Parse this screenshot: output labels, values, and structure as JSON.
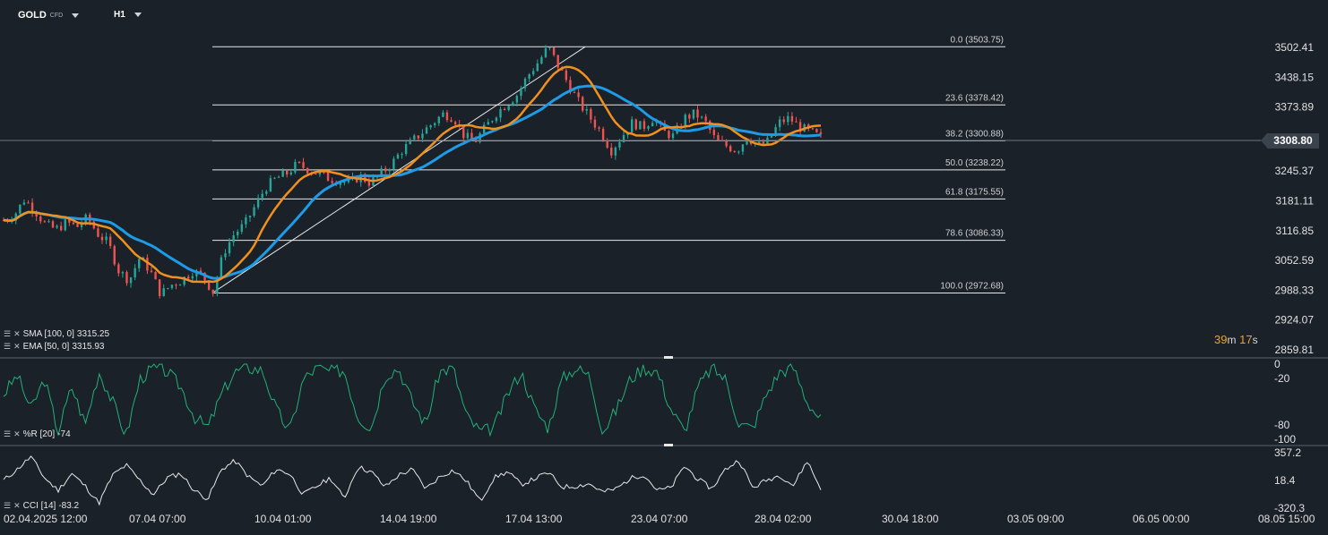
{
  "header": {
    "symbol": "GOLD",
    "symbol_sub": "CFD",
    "timeframe": "H1"
  },
  "chart_data": {
    "type": "candlestick",
    "price_axis_ticks": [
      "3502.41",
      "3438.15",
      "3373.89",
      "3308.80",
      "3245.37",
      "3181.11",
      "3116.85",
      "3052.59",
      "2988.33",
      "2924.07",
      "2859.81"
    ],
    "current_price": "3308.80",
    "time_axis_ticks": [
      "02.04.2025  12:00",
      "07.04  07:00",
      "10.04  01:00",
      "14.04  19:00",
      "17.04  13:00",
      "23.04  07:00",
      "28.04  02:00",
      "30.04  18:00",
      "03.05  09:00",
      "06.05  00:00",
      "08.05  15:00"
    ],
    "fibonacci": [
      {
        "label": "0.0 (3503.75)",
        "price": 3503.75
      },
      {
        "label": "23.6 (3378.42)",
        "price": 3378.42
      },
      {
        "label": "38.2 (3300.88)",
        "price": 3300.88
      },
      {
        "label": "50.0 (3238.22)",
        "price": 3238.22
      },
      {
        "label": "61.8 (3175.55)",
        "price": 3175.55
      },
      {
        "label": "78.6 (3086.33)",
        "price": 3086.33
      },
      {
        "label": "100.0 (2972.68)",
        "price": 2972.68
      }
    ],
    "ylim": [
      2859.81,
      3502.41
    ],
    "price_path": [
      3130,
      3140,
      3175,
      3150,
      3120,
      3110,
      3125,
      3115,
      3135,
      3100,
      3080,
      3020,
      3000,
      3050,
      3020,
      2970,
      2990,
      3000,
      3020,
      3010,
      2975,
      3060,
      3100,
      3120,
      3160,
      3200,
      3220,
      3230,
      3250,
      3240,
      3230,
      3220,
      3215,
      3210,
      3225,
      3210,
      3230,
      3250,
      3280,
      3300,
      3320,
      3340,
      3360,
      3350,
      3310,
      3300,
      3330,
      3360,
      3380,
      3400,
      3440,
      3470,
      3503,
      3460,
      3420,
      3380,
      3350,
      3320,
      3280,
      3310,
      3340,
      3330,
      3350,
      3320,
      3310,
      3350,
      3360,
      3340,
      3300,
      3290,
      3280,
      3310,
      3290,
      3300,
      3340,
      3350,
      3330,
      3320,
      3308
    ],
    "indicators": {
      "sma": {
        "label": "SMA [100,  0]",
        "value": "3315.25",
        "color": "#1e9be6"
      },
      "ema": {
        "label": "EMA [50,  0]",
        "value": "3315.93",
        "color": "#f0901e"
      },
      "wr": {
        "label": "%R [20]",
        "value": "-74",
        "ticks": [
          "0",
          "-20",
          "-80",
          "-100"
        ],
        "values": [
          -40,
          -15,
          -60,
          -20,
          -90,
          -30,
          -80,
          -10,
          -50,
          -95,
          -20,
          -5,
          -10,
          -30,
          -70,
          -85,
          -40,
          -10,
          -5,
          -8,
          -60,
          -90,
          -20,
          -5,
          -10,
          -8,
          -70,
          -85,
          -15,
          -5,
          -50,
          -80,
          -10,
          -5,
          -70,
          -90,
          -85,
          -40,
          -10,
          -60,
          -85,
          -20,
          -5,
          -15,
          -90,
          -60,
          -20,
          -5,
          -10,
          -60,
          -90,
          -30,
          -5,
          -20,
          -80,
          -85,
          -40,
          -10,
          -5,
          -50,
          -74
        ]
      },
      "cci": {
        "label": "CCI [14]",
        "value": "-83.2",
        "ticks": [
          "357.2",
          "18.4",
          "-320.3"
        ],
        "values": [
          20,
          150,
          300,
          50,
          -100,
          100,
          -50,
          -250,
          80,
          200,
          20,
          -150,
          50,
          100,
          -100,
          -200,
          150,
          250,
          60,
          -50,
          150,
          100,
          -150,
          -50,
          50,
          -200,
          180,
          120,
          -60,
          80,
          150,
          -80,
          60,
          140,
          10,
          -230,
          50,
          120,
          -30,
          40,
          110,
          -60,
          -50,
          -20,
          -120,
          -80,
          40,
          90,
          -100,
          -70,
          190,
          30,
          -80,
          150,
          260,
          -70,
          20,
          80,
          -40,
          250,
          -83
        ]
      }
    }
  },
  "countdown": {
    "minutes": "39",
    "m": "m",
    "seconds": "17",
    "s": "s"
  },
  "colors": {
    "background": "#1a2128",
    "up": "#26a69a",
    "down": "#ef5350",
    "sma": "#1e9be6",
    "ema": "#f0901e",
    "wr": "#22b07a",
    "cci": "#e8e8e8"
  }
}
